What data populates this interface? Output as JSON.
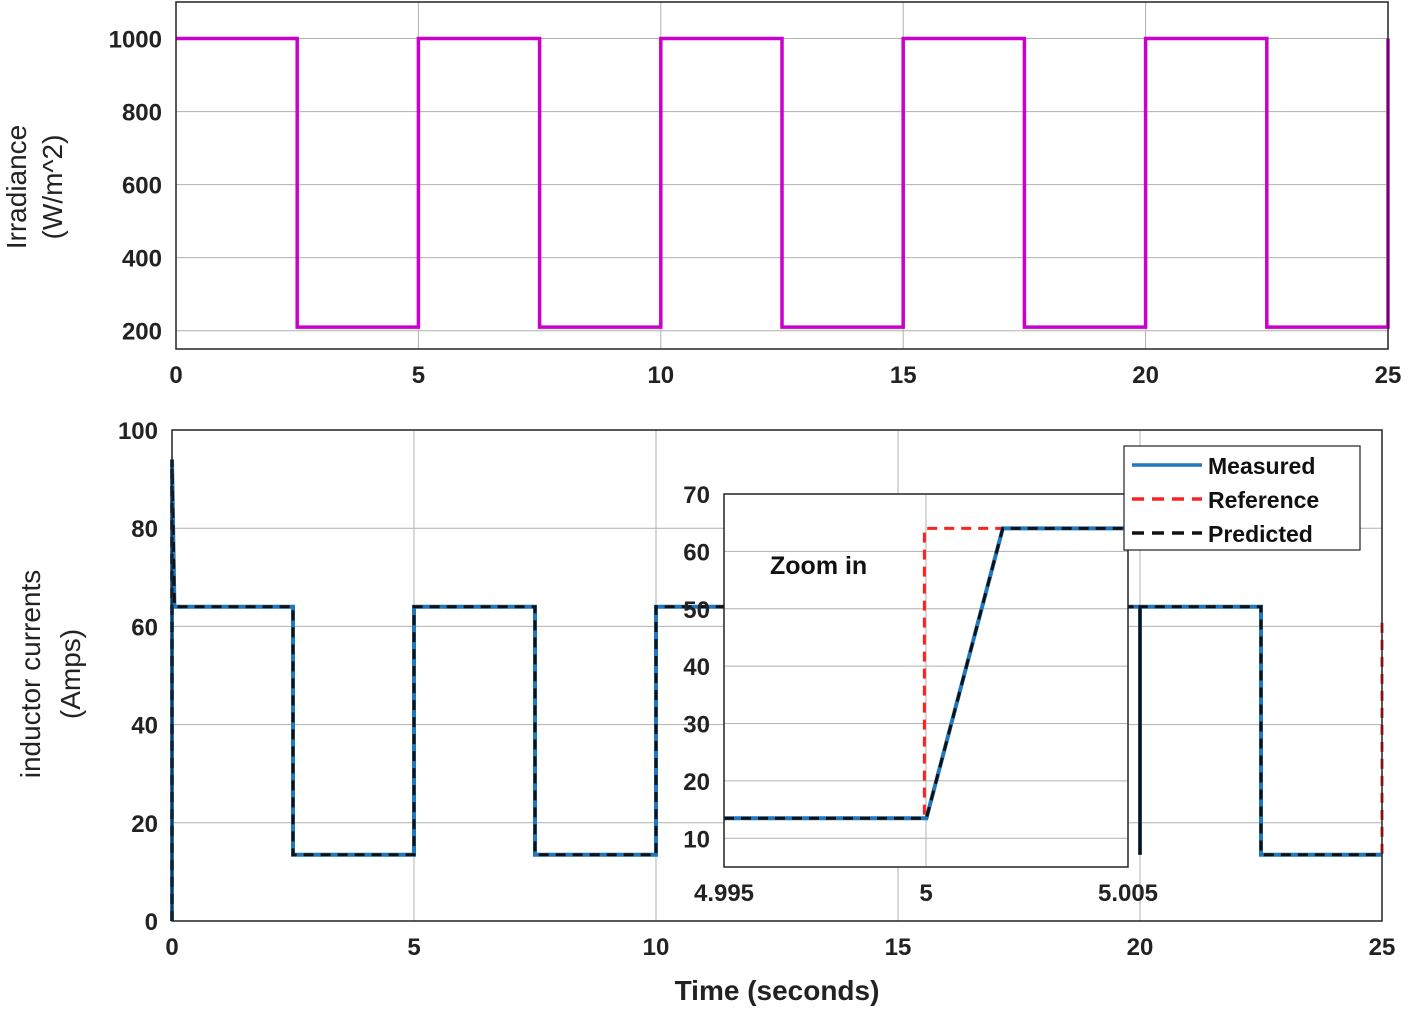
{
  "colors": {
    "irradiance": "#cc00cc",
    "measured": "#1f77c0",
    "reference": "#ff2020",
    "predicted": "#111111",
    "grid": "#b0b0b0",
    "axis": "#222222"
  },
  "chart_data": [
    {
      "id": "top",
      "type": "line",
      "ylabel_line1": "Irradiance",
      "ylabel_line2": "(W/m^2)",
      "xlabel": "",
      "xlim": [
        0,
        25
      ],
      "ylim": [
        150,
        1100
      ],
      "xticks": [
        0,
        5,
        10,
        15,
        20,
        25
      ],
      "yticks": [
        200,
        400,
        600,
        800,
        1000
      ],
      "grid": true,
      "series": [
        {
          "key": "irradiance",
          "points": [
            [
              0,
              1000
            ],
            [
              2.5,
              1000
            ],
            [
              2.5,
              210
            ],
            [
              5,
              210
            ],
            [
              5,
              1000
            ],
            [
              7.5,
              1000
            ],
            [
              7.5,
              210
            ],
            [
              10,
              210
            ],
            [
              10,
              1000
            ],
            [
              12.5,
              1000
            ],
            [
              12.5,
              210
            ],
            [
              15,
              210
            ],
            [
              15,
              1000
            ],
            [
              17.5,
              1000
            ],
            [
              17.5,
              210
            ],
            [
              20,
              210
            ],
            [
              20,
              1000
            ],
            [
              22.5,
              1000
            ],
            [
              22.5,
              210
            ],
            [
              25,
              210
            ],
            [
              25,
              1000
            ]
          ]
        }
      ]
    },
    {
      "id": "bottom",
      "type": "line",
      "ylabel_line1": "inductor currents",
      "ylabel_line2": "(Amps)",
      "xlabel": "Time (seconds)",
      "xlim": [
        0,
        25
      ],
      "ylim": [
        0,
        100
      ],
      "xticks": [
        0,
        5,
        10,
        15,
        20,
        25
      ],
      "yticks": [
        0,
        20,
        40,
        60,
        80,
        100
      ],
      "grid": true,
      "legend_position": "top-right",
      "series": [
        {
          "key": "reference",
          "name": "Reference",
          "points": [
            [
              0,
              0
            ],
            [
              0,
              94
            ],
            [
              0.05,
              64
            ],
            [
              2.5,
              64
            ],
            [
              2.5,
              13.5
            ],
            [
              5,
              13.5
            ],
            [
              5,
              64
            ],
            [
              7.5,
              64
            ],
            [
              7.5,
              13.5
            ],
            [
              10,
              13.5
            ],
            [
              10,
              64
            ],
            [
              20,
              64
            ],
            [
              20,
              13.5
            ],
            [
              20,
              64
            ],
            [
              22.5,
              64
            ],
            [
              22.5,
              13.5
            ],
            [
              25,
              13.5
            ],
            [
              25,
              62
            ]
          ]
        },
        {
          "key": "measured",
          "name": "Measured",
          "points": [
            [
              0,
              0
            ],
            [
              0,
              94
            ],
            [
              0.05,
              64
            ],
            [
              2.5,
              64
            ],
            [
              2.5,
              13.5
            ],
            [
              5,
              13.5
            ],
            [
              5,
              64
            ],
            [
              7.5,
              64
            ],
            [
              7.5,
              13.5
            ],
            [
              10,
              13.5
            ],
            [
              10,
              64
            ],
            [
              20,
              64
            ],
            [
              20,
              13.5
            ],
            [
              20,
              64
            ],
            [
              22.5,
              64
            ],
            [
              22.5,
              13.5
            ],
            [
              25,
              13.5
            ]
          ]
        },
        {
          "key": "predicted",
          "name": "Predicted",
          "points": [
            [
              0,
              0
            ],
            [
              0,
              94
            ],
            [
              0.05,
              64
            ],
            [
              2.5,
              64
            ],
            [
              2.5,
              13.5
            ],
            [
              5,
              13.5
            ],
            [
              5,
              64
            ],
            [
              7.5,
              64
            ],
            [
              7.5,
              13.5
            ],
            [
              10,
              13.5
            ],
            [
              10,
              64
            ],
            [
              20,
              64
            ],
            [
              20,
              13.5
            ],
            [
              20,
              64
            ],
            [
              22.5,
              64
            ],
            [
              22.5,
              13.5
            ],
            [
              25,
              13.5
            ]
          ]
        }
      ]
    },
    {
      "id": "inset",
      "type": "line",
      "annotation": "Zoom in",
      "xlim": [
        4.995,
        5.005
      ],
      "ylim": [
        5,
        70
      ],
      "xticks": [
        4.995,
        5,
        5.005
      ],
      "xtick_labels": [
        "4.995",
        "5",
        "5.005"
      ],
      "yticks": [
        10,
        20,
        30,
        40,
        50,
        60,
        70
      ],
      "grid": true,
      "series": [
        {
          "key": "reference",
          "points": [
            [
              4.995,
              13.5
            ],
            [
              4.99996,
              13.5
            ],
            [
              4.99996,
              64
            ],
            [
              5.005,
              64
            ]
          ]
        },
        {
          "key": "measured",
          "points": [
            [
              4.995,
              13.5
            ],
            [
              5.00001,
              13.5
            ],
            [
              5.0019,
              64
            ],
            [
              5.005,
              64
            ]
          ]
        },
        {
          "key": "predicted",
          "points": [
            [
              4.995,
              13.5
            ],
            [
              5.00001,
              13.5
            ],
            [
              5.0019,
              64
            ],
            [
              5.005,
              64
            ]
          ]
        }
      ]
    }
  ]
}
